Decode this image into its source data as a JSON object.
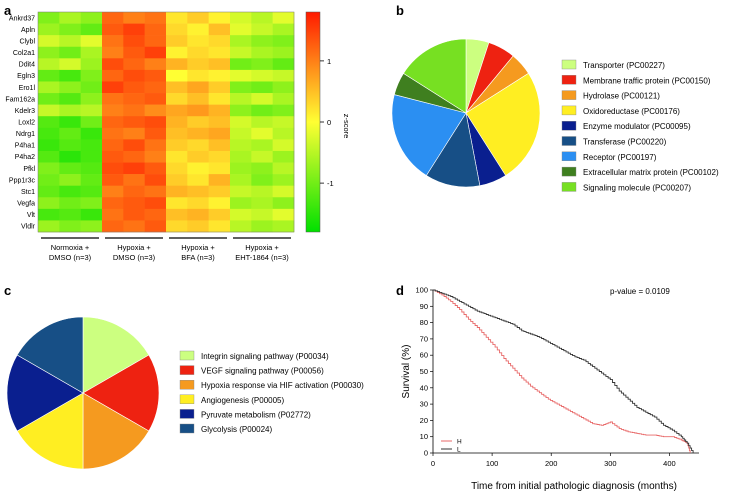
{
  "panels": {
    "a": "a",
    "b": "b",
    "c": "c",
    "d": "d"
  },
  "chart_data": [
    {
      "type": "heatmap",
      "panel": "a",
      "rows": [
        "Ankrd37",
        "Apln",
        "Clybl",
        "Col2a1",
        "Ddit4",
        "Egln3",
        "Ero1l",
        "Fam162a",
        "Kdelr3",
        "Loxl2",
        "Ndrg1",
        "P4ha1",
        "P4ha2",
        "Pfkl",
        "Ppp1r3c",
        "Stc1",
        "Vegfa",
        "Vlt",
        "Vldlr"
      ],
      "groups": [
        {
          "label": "Normoxia +\nDMSO (n=3)",
          "line1": "Normoxia +",
          "line2": "DMSO (n=3)",
          "replicates": 3
        },
        {
          "label": "Hypoxia +\nDMSO (n=3)",
          "line1": "Hypoxia +",
          "line2": "DMSO (n=3)",
          "replicates": 3
        },
        {
          "label": "Hypoxia +\nBFA (n=3)",
          "line1": "Hypoxia +",
          "line2": "BFA (n=3)",
          "replicates": 3
        },
        {
          "label": "Hypoxia +\nEHT-1864 (n=3)",
          "line1": "Hypoxia +",
          "line2": "EHT-1864 (n=3)",
          "replicates": 3
        }
      ],
      "values": [
        [
          -0.9,
          -0.6,
          -0.8,
          1.2,
          1.0,
          1.1,
          0.2,
          0.4,
          0.1,
          -0.3,
          -0.5,
          -0.2
        ],
        [
          -0.7,
          -0.9,
          -1.1,
          1.3,
          1.5,
          1.2,
          0.3,
          0.1,
          0.5,
          -0.2,
          -0.4,
          -0.6
        ],
        [
          -0.3,
          -0.5,
          -0.2,
          1.1,
          1.4,
          1.2,
          0.4,
          0.2,
          0.3,
          -0.6,
          -0.8,
          -0.9
        ],
        [
          -0.8,
          -1.0,
          -0.6,
          1.0,
          1.3,
          1.5,
          0.1,
          0.3,
          0.2,
          -0.4,
          -0.6,
          -0.7
        ],
        [
          -0.5,
          -0.3,
          -0.7,
          1.4,
          1.2,
          1.0,
          0.6,
          0.4,
          0.5,
          -1.0,
          -0.9,
          -1.1
        ],
        [
          -1.1,
          -1.3,
          -0.9,
          1.2,
          1.4,
          1.3,
          0.0,
          0.2,
          0.1,
          -0.2,
          -0.3,
          -0.4
        ],
        [
          -0.6,
          -0.8,
          -1.0,
          1.5,
          1.3,
          1.2,
          0.5,
          0.7,
          0.4,
          -0.9,
          -1.0,
          -0.8
        ],
        [
          -1.0,
          -1.2,
          -0.8,
          1.1,
          1.2,
          1.3,
          0.3,
          0.5,
          0.2,
          -0.5,
          -0.3,
          -0.6
        ],
        [
          -0.4,
          -0.6,
          -0.5,
          1.0,
          1.1,
          0.9,
          0.7,
          0.8,
          0.6,
          -0.8,
          -1.0,
          -0.9
        ],
        [
          -1.2,
          -1.4,
          -1.0,
          1.2,
          1.3,
          1.4,
          0.6,
          0.4,
          0.5,
          -0.3,
          -0.5,
          -0.4
        ],
        [
          -1.3,
          -1.1,
          -1.4,
          1.1,
          1.0,
          1.3,
          0.5,
          0.6,
          0.7,
          -0.4,
          -0.2,
          -0.5
        ],
        [
          -1.4,
          -1.2,
          -1.3,
          1.2,
          1.4,
          1.1,
          0.4,
          0.3,
          0.5,
          -0.5,
          -0.6,
          -0.3
        ],
        [
          -1.2,
          -1.5,
          -1.3,
          1.3,
          1.2,
          1.0,
          0.2,
          0.4,
          0.3,
          -0.6,
          -0.4,
          -0.7
        ],
        [
          -0.9,
          -1.1,
          -1.2,
          1.4,
          1.5,
          1.3,
          0.3,
          0.1,
          0.2,
          -0.7,
          -0.8,
          -0.5
        ],
        [
          -1.0,
          -0.8,
          -1.1,
          1.3,
          1.1,
          1.4,
          0.4,
          0.2,
          0.6,
          -0.6,
          -0.9,
          -0.7
        ],
        [
          -1.1,
          -1.3,
          -1.2,
          1.0,
          1.2,
          1.1,
          0.6,
          0.5,
          0.4,
          -0.4,
          -0.5,
          -0.3
        ],
        [
          -0.8,
          -1.0,
          -0.9,
          1.2,
          1.3,
          1.4,
          0.2,
          0.3,
          0.1,
          -0.7,
          -0.6,
          -0.8
        ],
        [
          -1.3,
          -1.2,
          -1.4,
          1.1,
          1.3,
          1.2,
          0.5,
          0.6,
          0.4,
          -0.3,
          -0.4,
          -0.2
        ],
        [
          -0.7,
          -0.9,
          -0.8,
          1.2,
          1.1,
          1.3,
          0.3,
          0.4,
          0.2,
          -0.5,
          -0.7,
          -0.6
        ]
      ],
      "colorbar": {
        "label": "z-score",
        "ticks": [
          -1,
          0,
          1
        ],
        "range": [
          -1.8,
          1.8
        ]
      },
      "colors": {
        "low": "#00e000",
        "mid": "#ffff33",
        "high": "#ff1a00"
      }
    },
    {
      "type": "pie",
      "panel": "b",
      "slices": [
        {
          "label": "Transporter (PC00227)",
          "value": 5,
          "color": "#ccff80"
        },
        {
          "label": "Membrane traffic protein (PC00150)",
          "value": 6,
          "color": "#ee2211"
        },
        {
          "label": "Hydrolase (PC00121)",
          "value": 5,
          "color": "#f59a1f"
        },
        {
          "label": "Oxidoreductase (PC00176)",
          "value": 25,
          "color": "#ffee22"
        },
        {
          "label": "Enzyme modulator (PC00095)",
          "value": 6,
          "color": "#0a1f8f"
        },
        {
          "label": "Transferase (PC00220)",
          "value": 12,
          "color": "#174f86"
        },
        {
          "label": "Receptor (PC00197)",
          "value": 20,
          "color": "#2b8ff2"
        },
        {
          "label": "Extracellular matrix protein (PC00102)",
          "value": 5,
          "color": "#3f7f1f"
        },
        {
          "label": "Signaling molecule (PC00207)",
          "value": 16,
          "color": "#77e022"
        }
      ]
    },
    {
      "type": "pie",
      "panel": "c",
      "slices": [
        {
          "label": "Integrin signaling pathway (P00034)",
          "value": 1,
          "color": "#ccff80"
        },
        {
          "label": "VEGF signaling pathway (P00056)",
          "value": 1,
          "color": "#ee2211"
        },
        {
          "label": "Hypoxia response via HIF activation (P00030)",
          "value": 1,
          "color": "#f59a1f"
        },
        {
          "label": "Angiogenesis (P00005)",
          "value": 1,
          "color": "#ffee22"
        },
        {
          "label": "Pyruvate metabolism (P02772)",
          "value": 1,
          "color": "#0a1f8f"
        },
        {
          "label": "Glycolysis (P00024)",
          "value": 1,
          "color": "#174f86"
        }
      ]
    },
    {
      "type": "line",
      "subtype": "kaplan-meier",
      "panel": "d",
      "xlabel": "Time from initial pathologic diagnosis (months)",
      "ylabel": "Survival (%)",
      "xlim": [
        0,
        450
      ],
      "ylim": [
        0,
        100
      ],
      "xticks": [
        0,
        100,
        200,
        300,
        400
      ],
      "yticks": [
        0,
        10,
        20,
        30,
        40,
        50,
        60,
        70,
        80,
        90,
        100
      ],
      "annotation": "p-value = 0.0109",
      "series": [
        {
          "name": "H",
          "color": "#e86a6a",
          "x": [
            0,
            15,
            30,
            45,
            60,
            75,
            90,
            105,
            120,
            135,
            150,
            165,
            180,
            195,
            210,
            225,
            240,
            255,
            270,
            285,
            300,
            315,
            330,
            345,
            360,
            375,
            390,
            405,
            420,
            430,
            435
          ],
          "y": [
            100,
            97,
            93,
            88,
            82,
            77,
            71,
            65,
            58,
            52,
            46,
            41,
            37,
            33,
            30,
            27,
            24,
            21,
            18,
            17,
            19,
            15,
            13,
            12,
            11,
            11,
            10,
            10,
            8,
            6,
            0
          ]
        },
        {
          "name": "L",
          "color": "#333333",
          "x": [
            0,
            15,
            30,
            45,
            60,
            75,
            90,
            105,
            120,
            135,
            150,
            165,
            180,
            195,
            210,
            225,
            240,
            255,
            270,
            285,
            300,
            315,
            330,
            345,
            360,
            375,
            390,
            405,
            420,
            430,
            440
          ],
          "y": [
            100,
            98,
            96,
            93,
            90,
            87,
            85,
            83,
            81,
            79,
            75,
            73,
            71,
            68,
            65,
            62,
            59,
            57,
            53,
            49,
            45,
            38,
            33,
            28,
            25,
            22,
            17,
            14,
            10,
            6,
            0
          ]
        }
      ]
    }
  ]
}
